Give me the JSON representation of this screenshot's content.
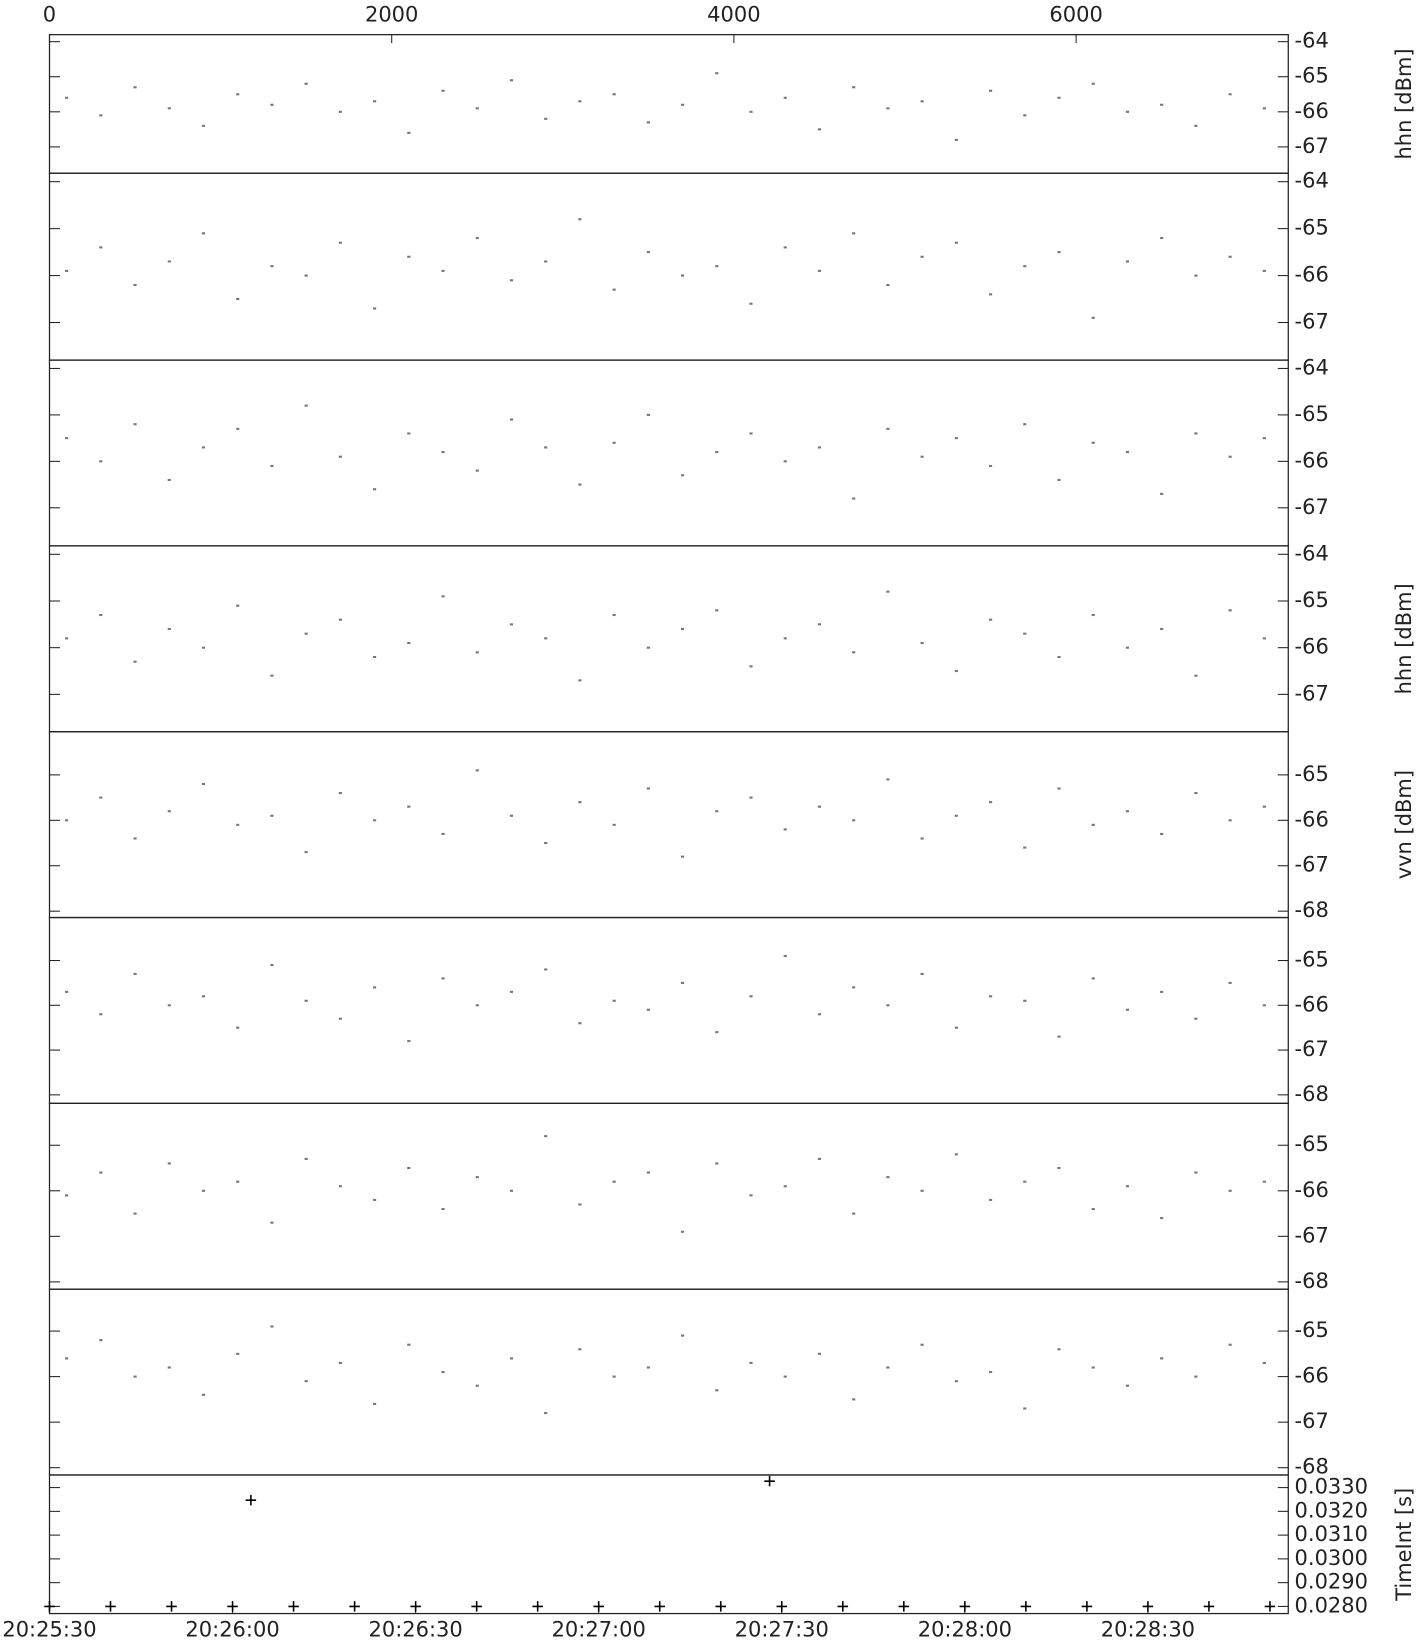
{
  "chart_data": [
    {
      "type": "scatter",
      "ylabel": "hhn [dBm]",
      "xlim": [
        0,
        7240
      ],
      "xticks": [
        0,
        2000,
        4000,
        6000
      ],
      "ylim": [
        -63.8,
        -67.75
      ],
      "yticks": [
        -64,
        -65,
        -66,
        -67
      ],
      "x": [
        100,
        300,
        500,
        700,
        900,
        1100,
        1300,
        1500,
        1700,
        1900,
        2100,
        2300,
        2500,
        2700,
        2900,
        3100,
        3300,
        3500,
        3700,
        3900,
        4100,
        4300,
        4500,
        4700,
        4900,
        5100,
        5300,
        5500,
        5700,
        5900,
        6100,
        6300,
        6500,
        6700,
        6900,
        7100
      ],
      "series": [
        {
          "color": "#777777",
          "values": [
            -65.6,
            -66.1,
            -65.3,
            -65.9,
            -66.4,
            -65.5,
            -65.8,
            -65.2,
            -66.0,
            -65.7,
            -66.6,
            -65.4,
            -65.9,
            -65.1,
            -66.2,
            -65.7,
            -65.5,
            -66.3,
            -65.8,
            -64.9,
            -66.0,
            -65.6,
            -66.5,
            -65.3,
            -65.9,
            -65.7,
            -66.8,
            -65.4,
            -66.1,
            -65.6,
            -65.2,
            -66.0,
            -65.8,
            -66.4,
            -65.5,
            -65.9
          ]
        }
      ]
    },
    {
      "type": "scatter",
      "xlim": [
        0,
        7240
      ],
      "ylim": [
        -63.82,
        -67.8
      ],
      "yticks": [
        -64,
        -65,
        -66,
        -67
      ],
      "x": [
        100,
        300,
        500,
        700,
        900,
        1100,
        1300,
        1500,
        1700,
        1900,
        2100,
        2300,
        2500,
        2700,
        2900,
        3100,
        3300,
        3500,
        3700,
        3900,
        4100,
        4300,
        4500,
        4700,
        4900,
        5100,
        5300,
        5500,
        5700,
        5900,
        6100,
        6300,
        6500,
        6700,
        6900,
        7100
      ],
      "series": [
        {
          "color": "#777777",
          "values": [
            -65.9,
            -65.4,
            -66.2,
            -65.7,
            -65.1,
            -66.5,
            -65.8,
            -66.0,
            -65.3,
            -66.7,
            -65.6,
            -65.9,
            -65.2,
            -66.1,
            -65.7,
            -64.8,
            -66.3,
            -65.5,
            -66.0,
            -65.8,
            -66.6,
            -65.4,
            -65.9,
            -65.1,
            -66.2,
            -65.6,
            -65.3,
            -66.4,
            -65.8,
            -65.5,
            -66.9,
            -65.7,
            -65.2,
            -66.0,
            -65.6,
            -65.9
          ]
        }
      ]
    },
    {
      "type": "scatter",
      "xlim": [
        0,
        7240
      ],
      "ylim": [
        -63.82,
        -67.82
      ],
      "yticks": [
        -64,
        -65,
        -66,
        -67
      ],
      "x": [
        100,
        300,
        500,
        700,
        900,
        1100,
        1300,
        1500,
        1700,
        1900,
        2100,
        2300,
        2500,
        2700,
        2900,
        3100,
        3300,
        3500,
        3700,
        3900,
        4100,
        4300,
        4500,
        4700,
        4900,
        5100,
        5300,
        5500,
        5700,
        5900,
        6100,
        6300,
        6500,
        6700,
        6900,
        7100
      ],
      "series": [
        {
          "color": "#777777",
          "values": [
            -65.5,
            -66.0,
            -65.2,
            -66.4,
            -65.7,
            -65.3,
            -66.1,
            -64.8,
            -65.9,
            -66.6,
            -65.4,
            -65.8,
            -66.2,
            -65.1,
            -65.7,
            -66.5,
            -65.6,
            -65.0,
            -66.3,
            -65.8,
            -65.4,
            -66.0,
            -65.7,
            -66.8,
            -65.3,
            -65.9,
            -65.5,
            -66.1,
            -65.2,
            -66.4,
            -65.6,
            -65.8,
            -66.7,
            -65.4,
            -65.9,
            -65.5
          ]
        }
      ]
    },
    {
      "type": "scatter",
      "ylabel": "hhn [dBm]",
      "xlim": [
        0,
        7240
      ],
      "ylim": [
        -63.82,
        -67.8
      ],
      "yticks": [
        -64,
        -65,
        -66,
        -67
      ],
      "x": [
        100,
        300,
        500,
        700,
        900,
        1100,
        1300,
        1500,
        1700,
        1900,
        2100,
        2300,
        2500,
        2700,
        2900,
        3100,
        3300,
        3500,
        3700,
        3900,
        4100,
        4300,
        4500,
        4700,
        4900,
        5100,
        5300,
        5500,
        5700,
        5900,
        6100,
        6300,
        6500,
        6700,
        6900,
        7100
      ],
      "series": [
        {
          "color": "#777777",
          "values": [
            -65.8,
            -65.3,
            -66.3,
            -65.6,
            -66.0,
            -65.1,
            -66.6,
            -65.7,
            -65.4,
            -66.2,
            -65.9,
            -64.9,
            -66.1,
            -65.5,
            -65.8,
            -66.7,
            -65.3,
            -66.0,
            -65.6,
            -65.2,
            -66.4,
            -65.8,
            -65.5,
            -66.1,
            -64.8,
            -65.9,
            -66.5,
            -65.4,
            -65.7,
            -66.2,
            -65.3,
            -66.0,
            -65.6,
            -66.6,
            -65.2,
            -65.8
          ]
        }
      ]
    },
    {
      "type": "scatter",
      "ylabel": "vvn [dBm]",
      "xlim": [
        0,
        7240
      ],
      "ylim": [
        -64.05,
        -68.14
      ],
      "yticks": [
        -65,
        -66,
        -67,
        -68
      ],
      "x": [
        100,
        300,
        500,
        700,
        900,
        1100,
        1300,
        1500,
        1700,
        1900,
        2100,
        2300,
        2500,
        2700,
        2900,
        3100,
        3300,
        3500,
        3700,
        3900,
        4100,
        4300,
        4500,
        4700,
        4900,
        5100,
        5300,
        5500,
        5700,
        5900,
        6100,
        6300,
        6500,
        6700,
        6900,
        7100
      ],
      "series": [
        {
          "color": "#777777",
          "values": [
            -66.0,
            -65.5,
            -66.4,
            -65.8,
            -65.2,
            -66.1,
            -65.9,
            -66.7,
            -65.4,
            -66.0,
            -65.7,
            -66.3,
            -64.9,
            -65.9,
            -66.5,
            -65.6,
            -66.1,
            -65.3,
            -66.8,
            -65.8,
            -65.5,
            -66.2,
            -65.7,
            -66.0,
            -65.1,
            -66.4,
            -65.9,
            -65.6,
            -66.6,
            -65.3,
            -66.1,
            -65.8,
            -66.3,
            -65.4,
            -66.0,
            -65.7
          ]
        }
      ]
    },
    {
      "type": "scatter",
      "xlim": [
        0,
        7240
      ],
      "ylim": [
        -64.04,
        -68.19
      ],
      "yticks": [
        -65,
        -66,
        -67,
        -68
      ],
      "x": [
        100,
        300,
        500,
        700,
        900,
        1100,
        1300,
        1500,
        1700,
        1900,
        2100,
        2300,
        2500,
        2700,
        2900,
        3100,
        3300,
        3500,
        3700,
        3900,
        4100,
        4300,
        4500,
        4700,
        4900,
        5100,
        5300,
        5500,
        5700,
        5900,
        6100,
        6300,
        6500,
        6700,
        6900,
        7100
      ],
      "series": [
        {
          "color": "#777777",
          "values": [
            -65.7,
            -66.2,
            -65.3,
            -66.0,
            -65.8,
            -66.5,
            -65.1,
            -65.9,
            -66.3,
            -65.6,
            -66.8,
            -65.4,
            -66.0,
            -65.7,
            -65.2,
            -66.4,
            -65.9,
            -66.1,
            -65.5,
            -66.6,
            -65.8,
            -64.9,
            -66.2,
            -65.6,
            -66.0,
            -65.3,
            -66.5,
            -65.8,
            -65.9,
            -66.7,
            -65.4,
            -66.1,
            -65.7,
            -66.3,
            -65.5,
            -66.0
          ]
        }
      ]
    },
    {
      "type": "scatter",
      "xlim": [
        0,
        7240
      ],
      "ylim": [
        -64.08,
        -68.16
      ],
      "yticks": [
        -65,
        -66,
        -67,
        -68
      ],
      "x": [
        100,
        300,
        500,
        700,
        900,
        1100,
        1300,
        1500,
        1700,
        1900,
        2100,
        2300,
        2500,
        2700,
        2900,
        3100,
        3300,
        3500,
        3700,
        3900,
        4100,
        4300,
        4500,
        4700,
        4900,
        5100,
        5300,
        5500,
        5700,
        5900,
        6100,
        6300,
        6500,
        6700,
        6900,
        7100
      ],
      "series": [
        {
          "color": "#777777",
          "values": [
            -66.1,
            -65.6,
            -66.5,
            -65.4,
            -66.0,
            -65.8,
            -66.7,
            -65.3,
            -65.9,
            -66.2,
            -65.5,
            -66.4,
            -65.7,
            -66.0,
            -64.8,
            -66.3,
            -65.8,
            -65.6,
            -66.9,
            -65.4,
            -66.1,
            -65.9,
            -65.3,
            -66.5,
            -65.7,
            -66.0,
            -65.2,
            -66.2,
            -65.8,
            -65.5,
            -66.4,
            -65.9,
            -66.6,
            -65.6,
            -66.0,
            -65.8
          ]
        }
      ]
    },
    {
      "type": "scatter",
      "xlim": [
        0,
        7240
      ],
      "ylim": [
        -64.08,
        -68.16
      ],
      "yticks": [
        -65,
        -66,
        -67,
        -68
      ],
      "x": [
        100,
        300,
        500,
        700,
        900,
        1100,
        1300,
        1500,
        1700,
        1900,
        2100,
        2300,
        2500,
        2700,
        2900,
        3100,
        3300,
        3500,
        3700,
        3900,
        4100,
        4300,
        4500,
        4700,
        4900,
        5100,
        5300,
        5500,
        5700,
        5900,
        6100,
        6300,
        6500,
        6700,
        6900,
        7100
      ],
      "series": [
        {
          "color": "#777777",
          "values": [
            -65.6,
            -65.2,
            -66.0,
            -65.8,
            -66.4,
            -65.5,
            -64.9,
            -66.1,
            -65.7,
            -66.6,
            -65.3,
            -65.9,
            -66.2,
            -65.6,
            -66.8,
            -65.4,
            -66.0,
            -65.8,
            -65.1,
            -66.3,
            -65.7,
            -66.0,
            -65.5,
            -66.5,
            -65.8,
            -65.3,
            -66.1,
            -65.9,
            -66.7,
            -65.4,
            -65.8,
            -66.2,
            -65.6,
            -66.0,
            -65.3,
            -65.7
          ]
        }
      ]
    },
    {
      "type": "cross",
      "ylabel": "TimeInt [s]",
      "xlim": [
        "20:25:30",
        "20:28:53"
      ],
      "xticks": [
        "20:25:30",
        "20:26:00",
        "20:26:30",
        "20:27:00",
        "20:27:30",
        "20:28:00",
        "20:28:30"
      ],
      "ylim": [
        0.03353,
        0.0277
      ],
      "yticks": [
        {
          "value": 0.033,
          "label": "0.0330"
        },
        {
          "value": 0.032,
          "label": "0.0320"
        },
        {
          "value": 0.031,
          "label": "0.0310"
        },
        {
          "value": 0.03,
          "label": "0.0300"
        },
        {
          "value": 0.029,
          "label": "0.0290"
        },
        {
          "value": 0.028,
          "label": "0.0280"
        }
      ],
      "x": [
        "20:25:30",
        "20:25:40",
        "20:25:50",
        "20:26:00",
        "20:26:03",
        "20:26:10",
        "20:26:20",
        "20:26:30",
        "20:26:40",
        "20:26:50",
        "20:27:00",
        "20:27:10",
        "20:27:20",
        "20:27:28",
        "20:27:30",
        "20:27:40",
        "20:27:50",
        "20:28:00",
        "20:28:10",
        "20:28:20",
        "20:28:30",
        "20:28:40",
        "20:28:50"
      ],
      "series": [
        {
          "color": "#000000",
          "values": [
            0.028,
            0.028,
            0.028,
            0.028,
            0.03247,
            0.028,
            0.028,
            0.028,
            0.028,
            0.028,
            0.028,
            0.028,
            0.028,
            0.03327,
            0.028,
            0.028,
            0.028,
            0.028,
            0.028,
            0.028,
            0.028,
            0.028,
            0.028
          ]
        }
      ]
    }
  ]
}
